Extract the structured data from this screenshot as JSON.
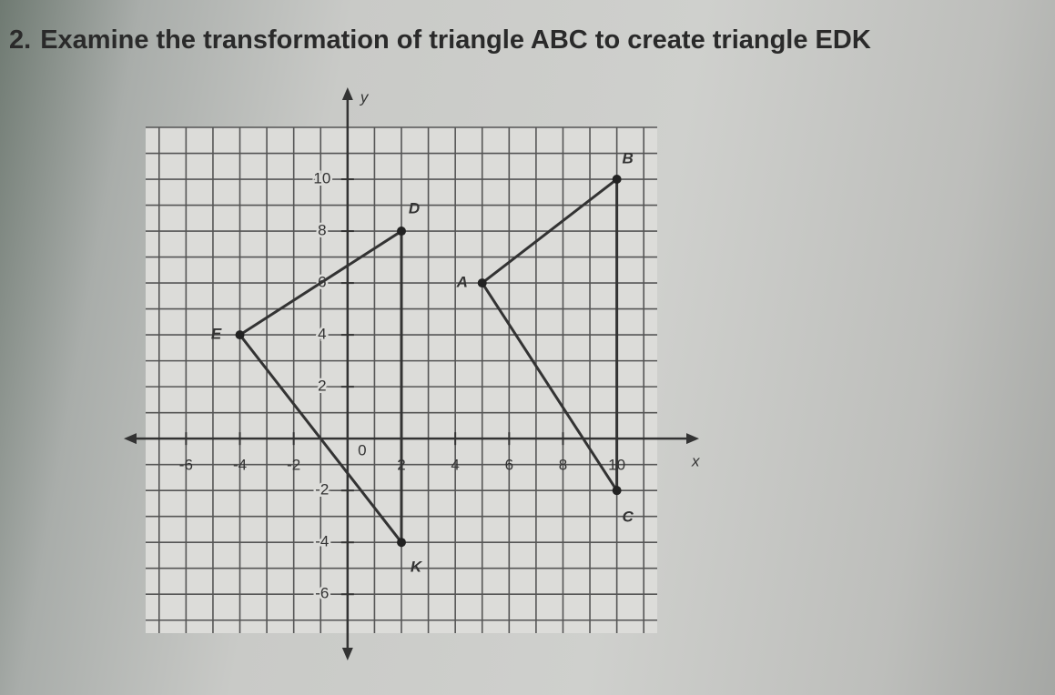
{
  "question": {
    "number": "2.",
    "text": "Examine the transformation of triangle ABC to create triangle EDK"
  },
  "graph": {
    "x_label": "x",
    "y_label": "y",
    "origin_label": 0,
    "xlim": [
      -7.5,
      11.5
    ],
    "ylim": [
      -7.5,
      12
    ],
    "xticks": [
      -6,
      -4,
      -2,
      2,
      4,
      6,
      8,
      10
    ],
    "yticks": [
      -6,
      -4,
      -2,
      2,
      4,
      6,
      8,
      10
    ],
    "triangles": [
      {
        "vertices": [
          {
            "label": "A",
            "x": 5,
            "y": 6
          },
          {
            "label": "B",
            "x": 10,
            "y": 10
          },
          {
            "label": "C",
            "x": 10,
            "y": -2
          }
        ]
      },
      {
        "vertices": [
          {
            "label": "E",
            "x": -4,
            "y": 4
          },
          {
            "label": "D",
            "x": 2,
            "y": 8
          },
          {
            "label": "K",
            "x": 2,
            "y": -4
          }
        ]
      }
    ]
  }
}
